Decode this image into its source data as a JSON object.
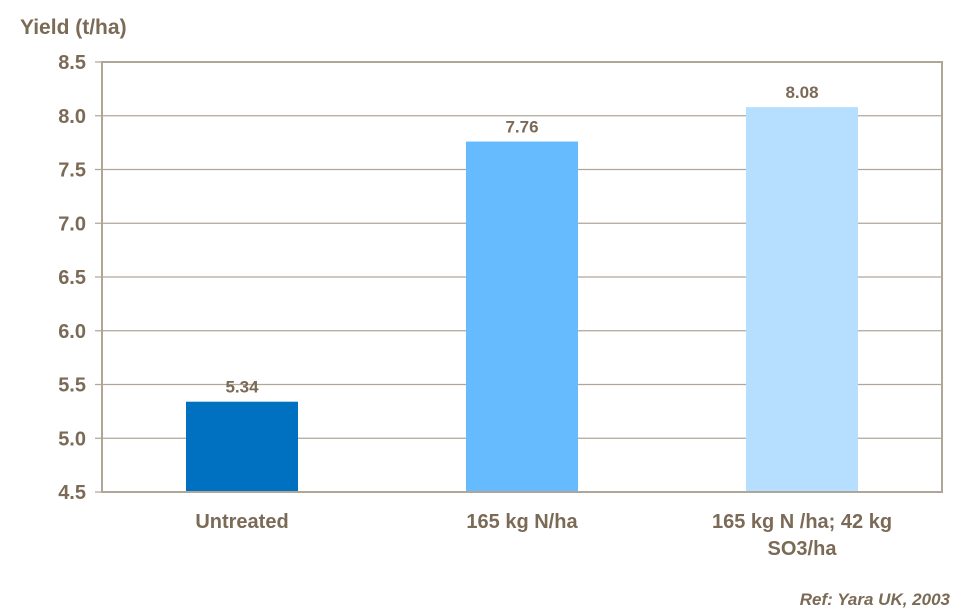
{
  "chart_data": {
    "type": "bar",
    "title": "",
    "xlabel": "",
    "ylabel": "Yield (t/ha)",
    "ylim": [
      4.5,
      8.5
    ],
    "yticks": [
      "4.5",
      "5.0",
      "5.5",
      "6.0",
      "6.5",
      "7.0",
      "7.5",
      "8.0",
      "8.5"
    ],
    "grid": true,
    "categories": [
      [
        "Untreated"
      ],
      [
        "165 kg N/ha"
      ],
      [
        "165 kg N /ha; 42 kg",
        "SO3/ha"
      ]
    ],
    "values": [
      5.34,
      7.76,
      8.08
    ],
    "data_labels": [
      "5.34",
      "7.76",
      "8.08"
    ],
    "colors": [
      "#0070C0",
      "#66BBFF",
      "#B5DEFF"
    ]
  },
  "reference": "Ref: Yara UK, 2003",
  "colors": {
    "text": "#7a6a56",
    "axis": "#b0a698"
  }
}
